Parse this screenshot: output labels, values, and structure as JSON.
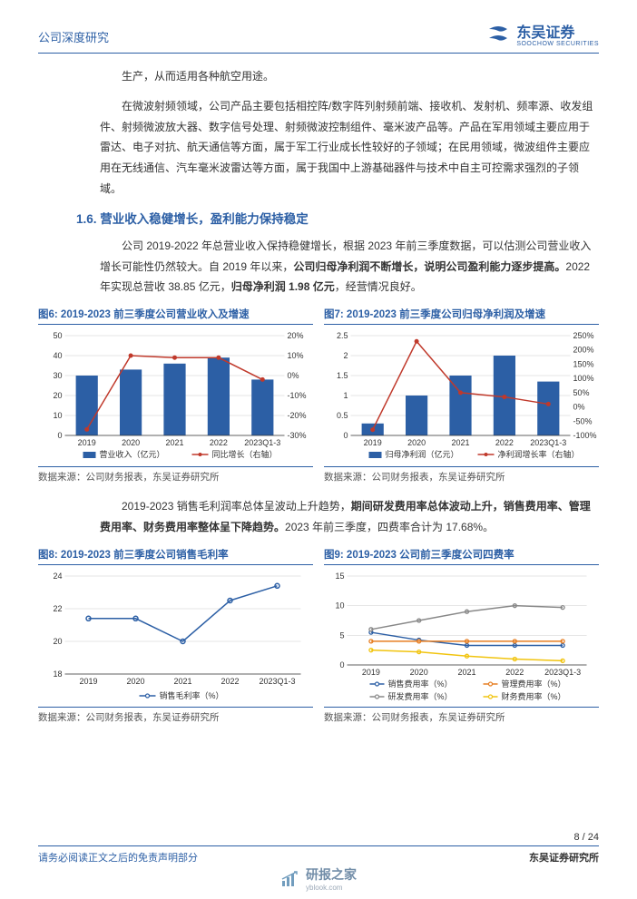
{
  "header": {
    "left": "公司深度研究",
    "brand_cn": "东吴证券",
    "brand_en": "SOOCHOW SECURITIES"
  },
  "paragraphs": {
    "p0": "生产，从而适用各种航空用途。",
    "p1": "在微波射频领域，公司产品主要包括相控阵/数字阵列射频前端、接收机、发射机、频率源、收发组件、射频微波放大器、数字信号处理、射频微波控制组件、毫米波产品等。产品在军用领域主要应用于雷达、电子对抗、航天通信等方面，属于军工行业成长性较好的子领域；在民用领域，微波组件主要应用在无线通信、汽车毫米波雷达等方面，属于我国中上游基础器件与技术中自主可控需求强烈的子领域。",
    "section16": "1.6.  营业收入稳健增长，盈利能力保持稳定",
    "p2a": "公司 2019-2022 年总营业收入保持稳健增长，根据 2023 年前三季度数据，可以估测公司营业收入增长可能性仍然较大。自 2019 年以来，",
    "p2b": "公司归母净利润不断增长，说明公司盈利能力逐步提高。",
    "p2c": "2022 年实现总营收 38.85 亿元，",
    "p2d": "归母净利润 1.98 亿元",
    "p2e": "，经营情况良好。",
    "p3a": "2019-2023 销售毛利润率总体呈波动上升趋势，",
    "p3b": "期间研发费用率总体波动上升，销售费用率、管理费用率、财务费用率整体呈下降趋势。",
    "p3c": "2023 年前三季度，四费率合计为 17.68%。"
  },
  "chart6": {
    "title": "图6:  2019-2023 前三季度公司营业收入及增速",
    "source": "数据来源：公司财务报表，东吴证券研究所",
    "type": "bar+line",
    "categories": [
      "2019",
      "2020",
      "2021",
      "2022",
      "2023Q1-3"
    ],
    "bar_values": [
      30,
      33,
      36,
      39,
      28
    ],
    "line_values": [
      -27,
      10,
      9,
      9,
      -2
    ],
    "left_axis": {
      "min": 0,
      "max": 50,
      "step": 10
    },
    "right_axis": {
      "min": -30,
      "max": 20,
      "step": 10
    },
    "bar_color": "#2c5fa5",
    "line_color": "#c0392b",
    "legend": [
      "营业收入（亿元）",
      "同比增长（右轴）"
    ],
    "background": "#ffffff",
    "grid_color": "#cccccc",
    "font_size": 9
  },
  "chart7": {
    "title": "图7:  2019-2023 前三季度公司归母净利润及增速",
    "source": "数据来源：公司财务报表，东吴证券研究所",
    "type": "bar+line",
    "categories": [
      "2019",
      "2020",
      "2021",
      "2022",
      "2023Q1-3"
    ],
    "bar_values": [
      0.3,
      1.0,
      1.5,
      2.0,
      1.35
    ],
    "line_values": [
      -80,
      230,
      50,
      35,
      10
    ],
    "left_axis": {
      "min": 0,
      "max": 2.5,
      "step": 0.5
    },
    "right_axis": {
      "min": -100,
      "max": 250,
      "step": 50
    },
    "bar_color": "#2c5fa5",
    "line_color": "#c0392b",
    "legend": [
      "归母净利润（亿元）",
      "净利润增长率（右轴）"
    ],
    "background": "#ffffff",
    "grid_color": "#cccccc",
    "font_size": 9
  },
  "chart8": {
    "title": "图8:  2019-2023 前三季度公司销售毛利率",
    "source": "数据来源：公司财务报表，东吴证券研究所",
    "type": "line",
    "categories": [
      "2019",
      "2020",
      "2021",
      "2022",
      "2023Q1-3"
    ],
    "values": [
      21.4,
      21.4,
      20.0,
      22.5,
      23.4
    ],
    "y_axis": {
      "min": 18,
      "max": 24,
      "step": 2
    },
    "line_color": "#2c5fa5",
    "legend": [
      "销售毛利率（%）"
    ],
    "background": "#ffffff",
    "grid_color": "#cccccc",
    "font_size": 9
  },
  "chart9": {
    "title": "图9:  2019-2023 公司前三季度公司四费率",
    "source": "数据来源：公司财务报表，东吴证券研究所",
    "type": "multiline",
    "categories": [
      "2019",
      "2020",
      "2021",
      "2022",
      "2023Q1-3"
    ],
    "series": [
      {
        "name": "销售费用率（%）",
        "color": "#2c5fa5",
        "values": [
          5.5,
          4.2,
          3.3,
          3.3,
          3.3
        ]
      },
      {
        "name": "管理费用率（%）",
        "color": "#e67e22",
        "values": [
          4.0,
          4.0,
          4.0,
          4.0,
          4.0
        ]
      },
      {
        "name": "研发费用率（%）",
        "color": "#888888",
        "values": [
          6.0,
          7.5,
          9.0,
          10.0,
          9.7
        ]
      },
      {
        "name": "财务费用率（%）",
        "color": "#f1c40f",
        "values": [
          2.5,
          2.2,
          1.5,
          1.0,
          0.7
        ]
      }
    ],
    "y_axis": {
      "min": 0,
      "max": 15,
      "step": 5
    },
    "background": "#ffffff",
    "grid_color": "#cccccc",
    "font_size": 9
  },
  "footer": {
    "page": "8 / 24",
    "left": "请务必阅读正文之后的免责声明部分",
    "right": "东吴证券研究所"
  },
  "watermark": {
    "text": "研报之家",
    "sub": "yblook.com"
  }
}
